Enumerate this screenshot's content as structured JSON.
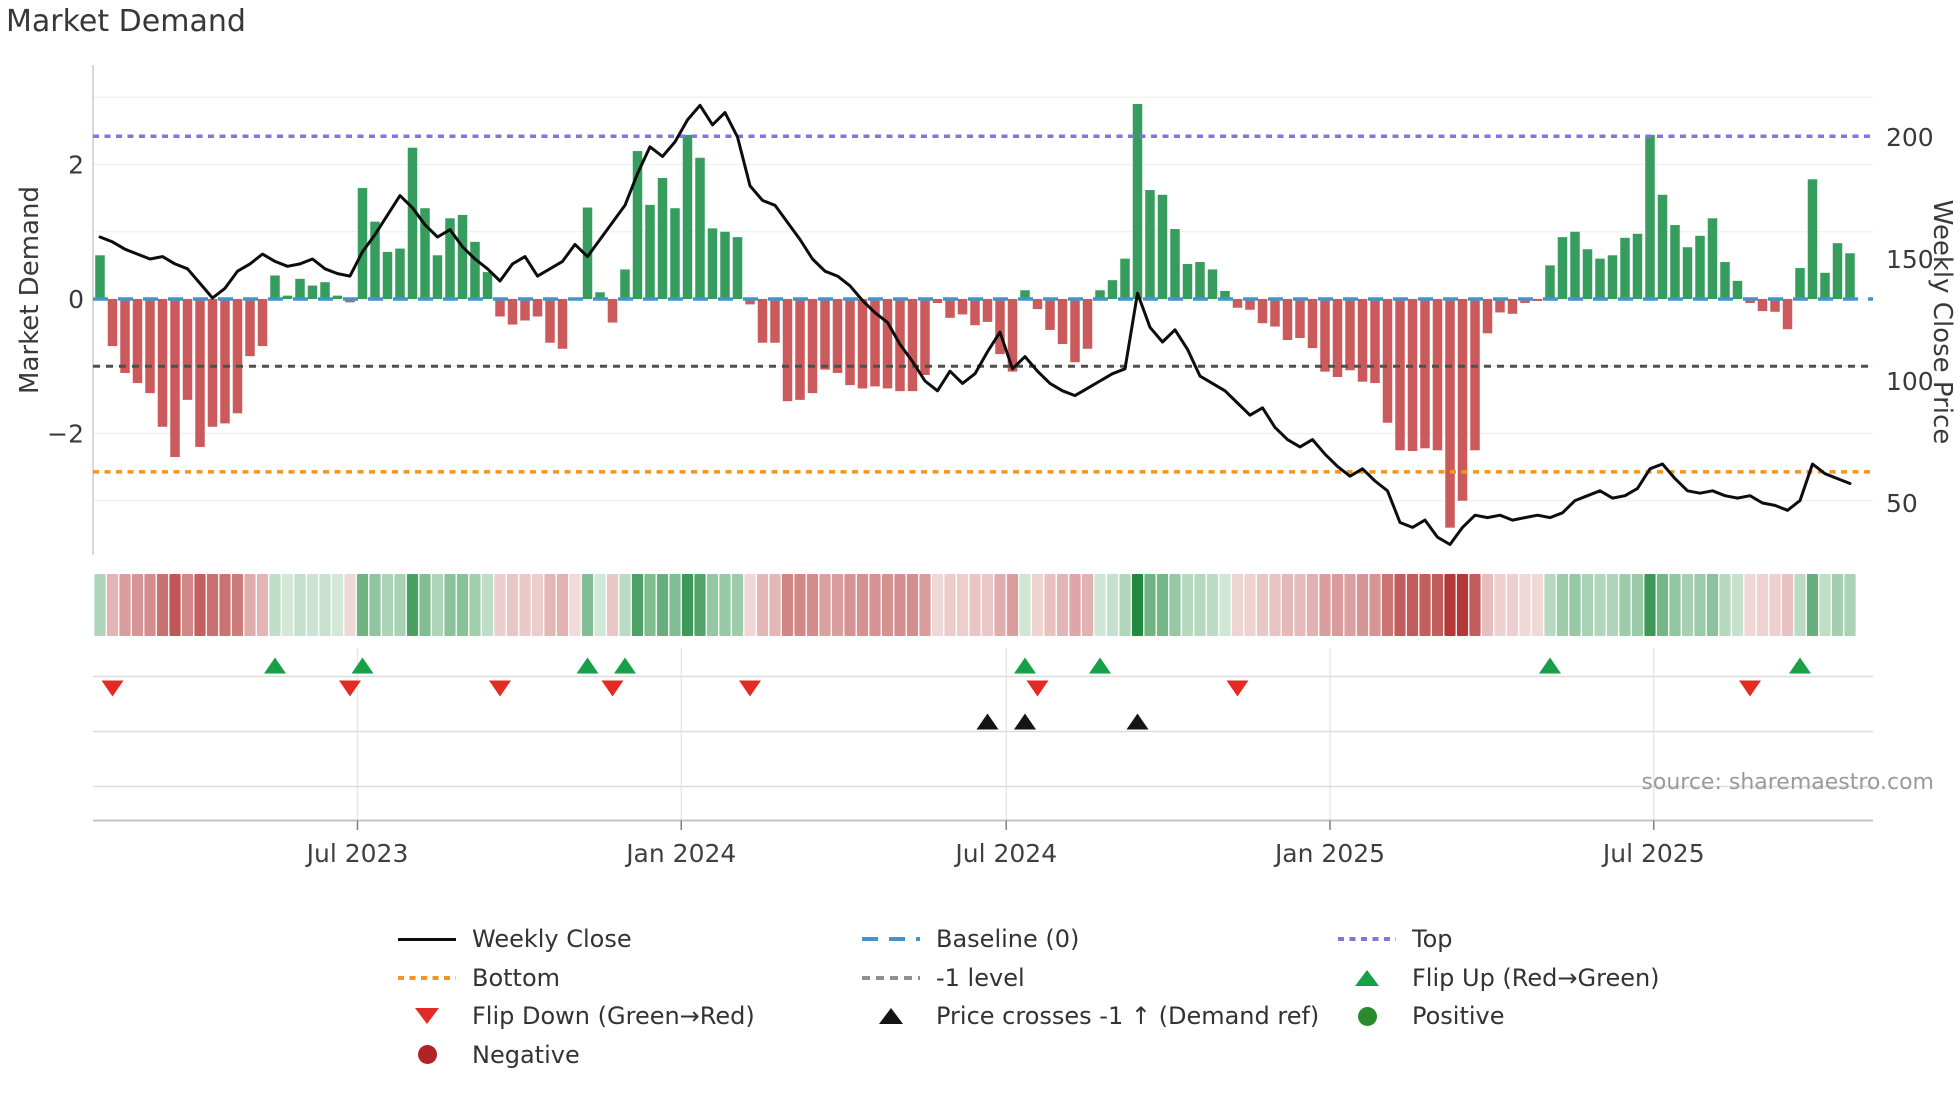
{
  "title": "Market Demand",
  "source": "source: sharemaestro.com",
  "axes": {
    "left_label": "Market Demand",
    "right_label": "Weekly Close Price",
    "left_ticks": [
      {
        "value": 2,
        "label": "2"
      },
      {
        "value": 0,
        "label": "0"
      },
      {
        "value": -2,
        "label": "−2"
      }
    ],
    "right_ticks": [
      {
        "value": 200,
        "label": "200"
      },
      {
        "value": 150,
        "label": "150"
      },
      {
        "value": 100,
        "label": "100"
      },
      {
        "value": 50,
        "label": "50"
      }
    ],
    "x_ticks": [
      {
        "label": "Jul 2023",
        "week": 20.6
      },
      {
        "label": "Jan 2024",
        "week": 46.5
      },
      {
        "label": "Jul 2024",
        "week": 72.5
      },
      {
        "label": "Jan 2025",
        "week": 98.4
      },
      {
        "label": "Jul 2025",
        "week": 124.3
      }
    ]
  },
  "colors": {
    "bar_green": "#379d5e",
    "bar_red": "#cb5a5c",
    "price_line": "#0d0d0d",
    "baseline": "#4493cf",
    "top": "#8177d8",
    "minus1": "#4f4f4f",
    "minus1_legend": "#909090",
    "bottom": "#f79421",
    "flip_up": "#18a049",
    "flip_down": "#e32b25",
    "price_cross": "#141414",
    "positive_dot": "#2b8a2e",
    "negative_dot": "#b22226",
    "heat_green": "#218a3f",
    "heat_red": "#b43838"
  },
  "chart_data": {
    "type": "composite",
    "x_unit": "week",
    "series": [
      {
        "name": "Market Demand",
        "type": "bar",
        "axis": "left",
        "ylim": [
          -3.8,
          3.5
        ],
        "values": [
          0.65,
          -0.7,
          -1.1,
          -1.25,
          -1.4,
          -1.9,
          -2.35,
          -1.5,
          -2.2,
          -1.9,
          -1.85,
          -1.7,
          -0.85,
          -0.7,
          0.35,
          0.05,
          0.3,
          0.2,
          0.25,
          0.05,
          -0.05,
          1.65,
          1.15,
          0.7,
          0.75,
          2.25,
          1.35,
          0.65,
          1.2,
          1.25,
          0.85,
          0.4,
          -0.26,
          -0.38,
          -0.32,
          -0.26,
          -0.65,
          -0.74,
          -0.02,
          1.36,
          0.1,
          -0.35,
          0.44,
          2.2,
          1.4,
          1.8,
          1.35,
          2.44,
          2.1,
          1.05,
          1.0,
          0.92,
          -0.08,
          -0.65,
          -0.65,
          -1.52,
          -1.5,
          -1.4,
          -1.05,
          -1.1,
          -1.28,
          -1.33,
          -1.3,
          -1.33,
          -1.37,
          -1.37,
          -1.13,
          -0.06,
          -0.28,
          -0.23,
          -0.39,
          -0.34,
          -0.82,
          -1.08,
          0.13,
          -0.15,
          -0.46,
          -0.67,
          -0.94,
          -0.74,
          0.13,
          0.28,
          0.6,
          2.9,
          1.62,
          1.55,
          1.04,
          0.52,
          0.55,
          0.44,
          0.12,
          -0.13,
          -0.16,
          -0.36,
          -0.41,
          -0.61,
          -0.58,
          -0.73,
          -1.08,
          -1.16,
          -1.06,
          -1.23,
          -1.25,
          -1.84,
          -2.25,
          -2.26,
          -2.22,
          -2.25,
          -3.4,
          -3.0,
          -2.25,
          -0.51,
          -0.2,
          -0.22,
          -0.06,
          -0.03,
          0.5,
          0.92,
          1.0,
          0.74,
          0.6,
          0.65,
          0.91,
          0.97,
          2.44,
          1.55,
          1.1,
          0.77,
          0.94,
          1.2,
          0.55,
          0.27,
          -0.06,
          -0.18,
          -0.19,
          -0.45,
          0.46,
          1.78,
          0.39,
          0.83,
          0.68
        ]
      },
      {
        "name": "Weekly Close",
        "type": "line",
        "axis": "right",
        "ylim": [
          28,
          229
        ],
        "values": [
          159,
          157,
          154,
          152,
          150,
          151,
          148,
          146,
          140,
          134,
          138,
          145,
          148,
          152,
          149,
          147,
          148,
          150,
          146,
          144,
          143,
          153,
          160,
          168,
          176,
          171,
          164,
          159,
          162,
          155,
          150,
          146,
          141,
          148,
          151,
          143,
          146,
          149,
          156,
          151,
          158,
          165,
          172,
          185,
          196,
          192,
          198,
          207,
          213,
          205,
          210,
          200,
          180,
          174,
          172,
          165,
          158,
          150,
          145,
          143,
          139,
          133,
          128,
          124,
          115,
          108,
          100,
          96,
          104,
          99,
          103,
          112,
          120,
          105,
          110,
          104,
          99,
          96,
          94,
          97,
          100,
          103,
          105,
          136,
          122,
          116,
          121,
          113,
          102,
          99,
          96,
          91,
          86,
          89,
          81,
          76,
          73,
          76,
          70,
          65,
          61,
          64,
          59,
          55,
          42,
          40,
          43,
          36,
          33,
          40,
          45,
          44,
          45,
          43,
          44,
          45,
          44,
          46,
          51,
          53,
          55,
          52,
          53,
          56,
          64,
          66,
          60,
          55,
          54,
          55,
          53,
          52,
          53,
          50,
          49,
          47,
          51,
          66,
          62,
          60,
          58
        ]
      }
    ],
    "levels": {
      "baseline": 0,
      "top": 2.42,
      "bottom": -2.57,
      "minus1": -1
    },
    "markers": {
      "flip_up_weeks": [
        14,
        21,
        39,
        42,
        74,
        80,
        116,
        136
      ],
      "flip_down_weeks": [
        1,
        20,
        32,
        41,
        52,
        75,
        91,
        132
      ],
      "price_cross_weeks": [
        71,
        74,
        83
      ]
    },
    "grid_levels_left": [
      3,
      2,
      1,
      0,
      -1,
      -2,
      -3
    ]
  },
  "legend": {
    "columns": [
      [
        {
          "swatch": "solid",
          "color": "#0d0d0d",
          "label": "Weekly Close"
        },
        {
          "swatch": "dot",
          "color": "#f79421",
          "label": "Bottom"
        },
        {
          "swatch": "tri-down",
          "color": "#e32b25",
          "label": "Flip Down (Green→Red)"
        },
        {
          "swatch": "circle",
          "color": "#b22226",
          "label": "Negative"
        }
      ],
      [
        {
          "swatch": "dash",
          "color": "#4493cf",
          "label": "Baseline (0)"
        },
        {
          "swatch": "mdash",
          "color": "#909090",
          "label": "-1 level"
        },
        {
          "swatch": "tri-up",
          "color": "#141414",
          "label": "Price crosses -1 ↑ (Demand ref)"
        }
      ],
      [
        {
          "swatch": "dot",
          "color": "#8177d8",
          "label": "Top"
        },
        {
          "swatch": "tri-up",
          "color": "#18a049",
          "label": "Flip Up (Red→Green)"
        },
        {
          "swatch": "circle",
          "color": "#2b8a2e",
          "label": "Positive"
        }
      ]
    ]
  }
}
